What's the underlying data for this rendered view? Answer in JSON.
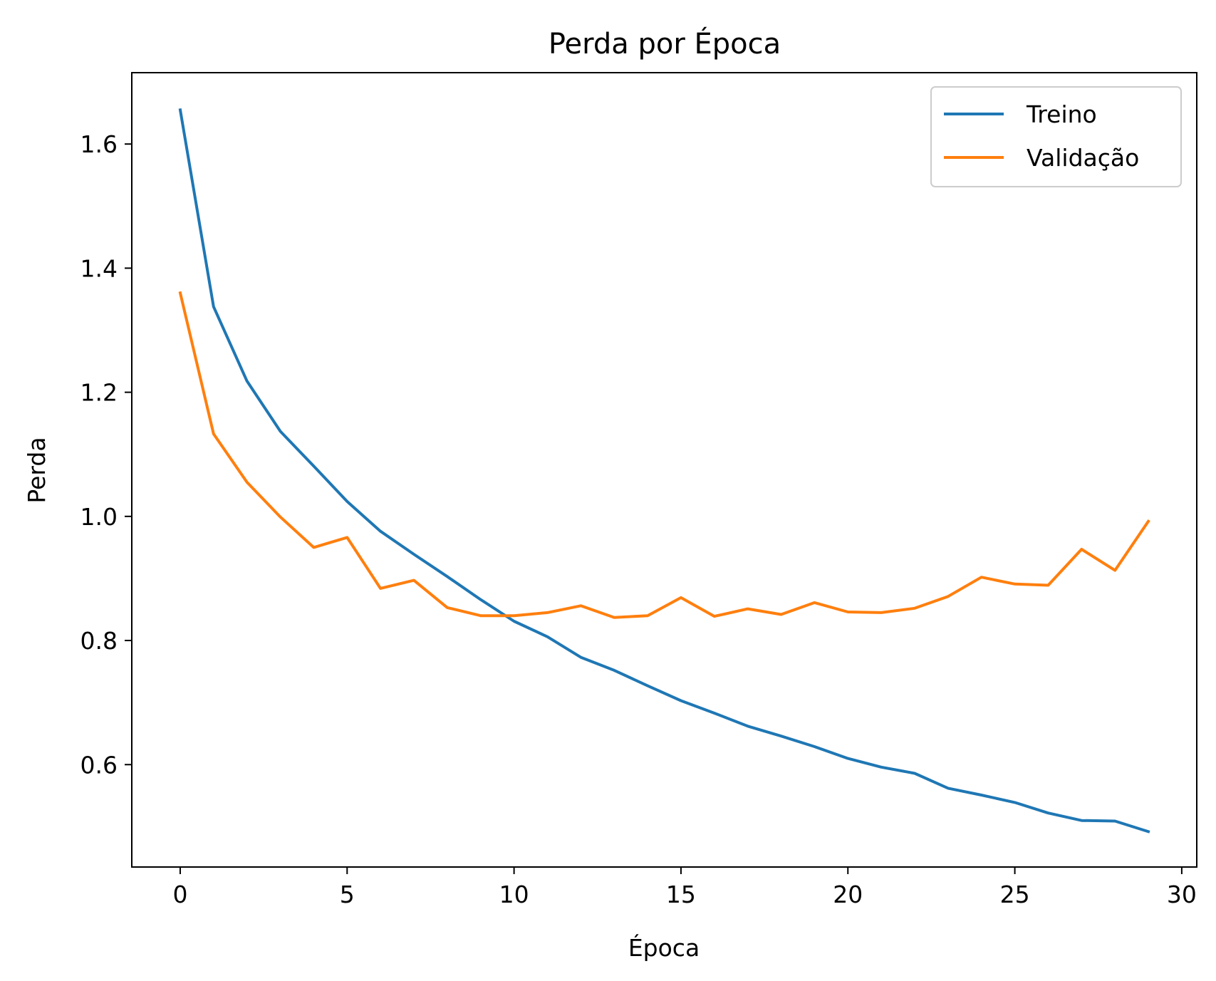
{
  "chart_data": {
    "type": "line",
    "title": "Perda por Época",
    "xlabel": "Época",
    "ylabel": "Perda",
    "xlim": [
      -1.45,
      30.45
    ],
    "ylim": [
      0.435,
      1.715
    ],
    "xticks": [
      0,
      5,
      10,
      15,
      20,
      25,
      30
    ],
    "yticks": [
      0.6,
      0.8,
      1.0,
      1.2,
      1.4,
      1.6
    ],
    "xtick_labels": [
      "0",
      "5",
      "10",
      "15",
      "20",
      "25",
      "30"
    ],
    "ytick_labels": [
      "0.6",
      "0.8",
      "1.0",
      "1.2",
      "1.4",
      "1.6"
    ],
    "grid": false,
    "legend_position": "top-right",
    "x": [
      0,
      1,
      2,
      3,
      4,
      5,
      6,
      7,
      8,
      9,
      10,
      11,
      12,
      13,
      14,
      15,
      16,
      17,
      18,
      19,
      20,
      21,
      22,
      23,
      24,
      25,
      26,
      27,
      28,
      29
    ],
    "series": [
      {
        "name": "Treino",
        "color": "#1f77b4",
        "values": [
          1.655,
          1.338,
          1.218,
          1.137,
          1.081,
          1.024,
          0.976,
          0.939,
          0.903,
          0.866,
          0.831,
          0.806,
          0.773,
          0.752,
          0.727,
          0.703,
          0.683,
          0.662,
          0.646,
          0.629,
          0.61,
          0.596,
          0.586,
          0.562,
          0.551,
          0.539,
          0.522,
          0.51,
          0.509,
          0.492
        ]
      },
      {
        "name": "Validação",
        "color": "#ff7f0e",
        "values": [
          1.36,
          1.133,
          1.055,
          0.999,
          0.95,
          0.966,
          0.884,
          0.897,
          0.853,
          0.84,
          0.84,
          0.845,
          0.856,
          0.837,
          0.84,
          0.869,
          0.839,
          0.851,
          0.842,
          0.861,
          0.846,
          0.845,
          0.852,
          0.871,
          0.902,
          0.891,
          0.889,
          0.947,
          0.913,
          0.992
        ]
      }
    ]
  }
}
